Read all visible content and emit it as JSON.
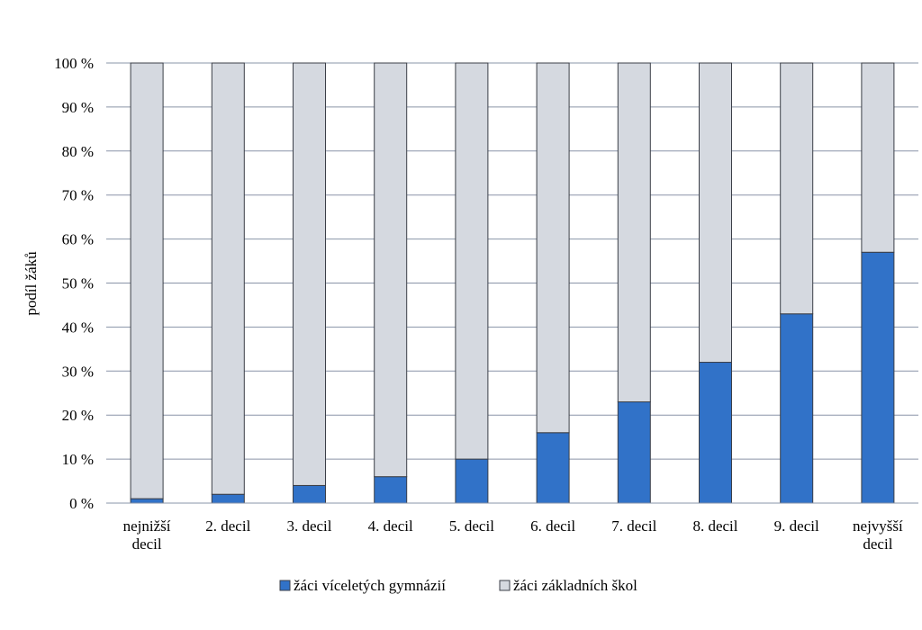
{
  "chart_data": {
    "type": "bar",
    "stacked": true,
    "title": "",
    "xlabel": "",
    "ylabel": "podíl žáků",
    "ylim": [
      0,
      100
    ],
    "y_unit": "%",
    "y_ticks": [
      "0 %",
      "10 %",
      "20 %",
      "30 %",
      "40 %",
      "50 %",
      "60 %",
      "70 %",
      "80 %",
      "90 %",
      "100 %"
    ],
    "y_tick_values": [
      0,
      10,
      20,
      30,
      40,
      50,
      60,
      70,
      80,
      90,
      100
    ],
    "grid": true,
    "legend_position": "bottom",
    "categories": [
      [
        "nejnižší",
        "decil"
      ],
      [
        "2. decil"
      ],
      [
        "3. decil"
      ],
      [
        "4. decil"
      ],
      [
        "5. decil"
      ],
      [
        "6. decil"
      ],
      [
        "7. decil"
      ],
      [
        "8. decil"
      ],
      [
        "9. decil"
      ],
      [
        "nejvyšší",
        "decil"
      ]
    ],
    "series": [
      {
        "name": "žáci víceletých gymnázií",
        "color": "#3172c8",
        "values": [
          1,
          2,
          4,
          6,
          10,
          16,
          23,
          32,
          43,
          57
        ]
      },
      {
        "name": "žáci základních škol",
        "color": "#d5d9e0",
        "values": [
          99,
          98,
          96,
          94,
          90,
          84,
          77,
          68,
          57,
          43
        ]
      }
    ]
  }
}
